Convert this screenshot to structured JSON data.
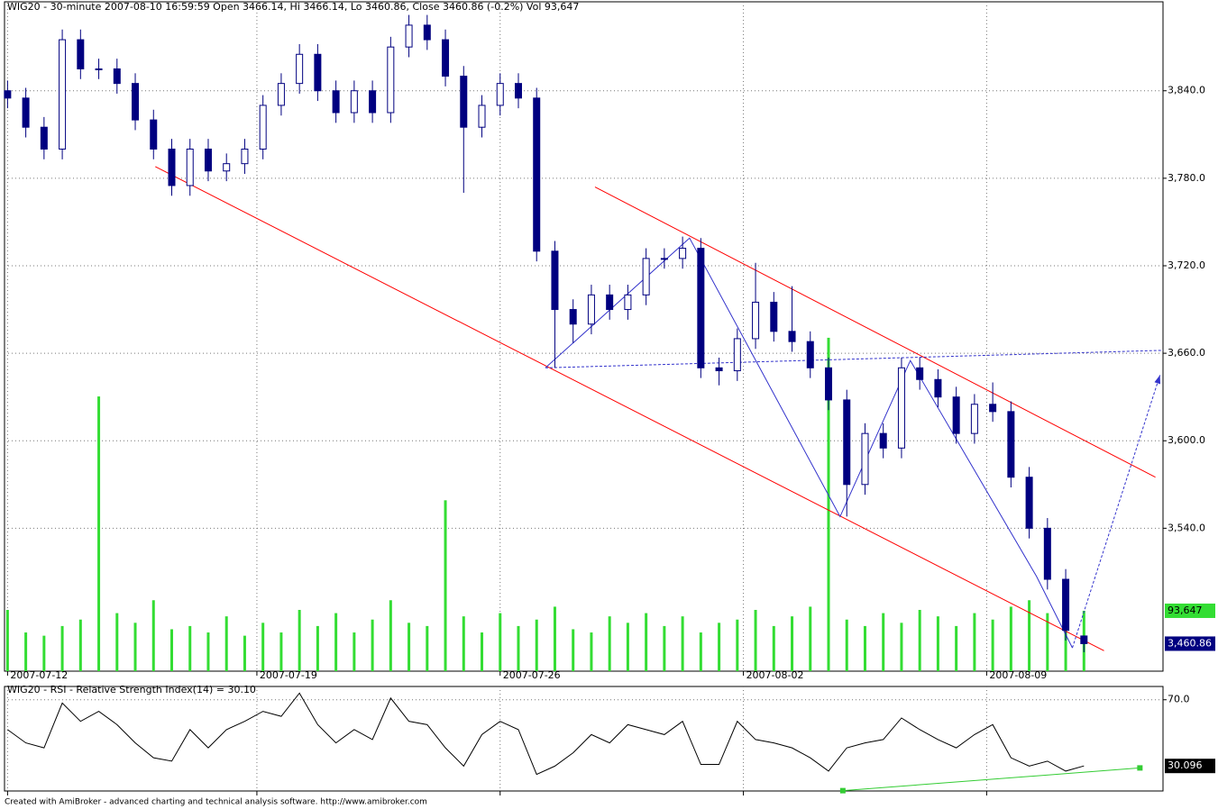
{
  "chart_data": [
    {
      "type": "candlestick",
      "title": "WIG20 - 30-minute 2007-08-10 16:59:59 Open 3466.14, Hi 3466.14, Lo 3460.86, Close 3460.86 (-0.2%) Vol 93,647",
      "x": [
        0,
        6,
        12,
        18,
        24,
        30,
        36,
        42,
        48,
        54,
        60,
        66,
        72,
        78,
        84,
        90,
        96,
        102,
        108,
        114,
        120,
        126,
        132,
        138,
        144,
        150,
        156,
        162,
        168,
        174,
        180,
        186,
        192,
        198,
        204,
        210,
        216,
        222,
        228,
        234,
        240,
        246,
        252,
        258,
        264,
        270,
        276,
        282,
        288,
        294,
        300,
        306,
        312,
        318,
        324,
        330,
        336,
        342,
        348,
        354
      ],
      "open": [
        3840,
        3835,
        3815,
        3800,
        3875,
        3855,
        3855,
        3845,
        3820,
        3800,
        3775,
        3800,
        3785,
        3790,
        3800,
        3830,
        3845,
        3865,
        3840,
        3825,
        3840,
        3825,
        3870,
        3885,
        3875,
        3850,
        3815,
        3830,
        3845,
        3835,
        3730,
        3690,
        3680,
        3700,
        3690,
        3700,
        3725,
        3725,
        3732,
        3650,
        3648,
        3670,
        3695,
        3675,
        3668,
        3650,
        3628,
        3570,
        3605,
        3595,
        3650,
        3642,
        3630,
        3605,
        3625,
        3620,
        3575,
        3540,
        3505,
        3466.14
      ],
      "high": [
        3847,
        3842,
        3822,
        3882,
        3882,
        3862,
        3862,
        3852,
        3827,
        3807,
        3807,
        3807,
        3797,
        3807,
        3837,
        3852,
        3872,
        3872,
        3847,
        3847,
        3847,
        3877,
        3892,
        3892,
        3882,
        3857,
        3837,
        3852,
        3852,
        3842,
        3737,
        3697,
        3707,
        3707,
        3707,
        3732,
        3732,
        3740,
        3739,
        3657,
        3677,
        3722,
        3702,
        3706,
        3675,
        3657,
        3635,
        3612,
        3612,
        3657,
        3657,
        3649,
        3637,
        3632,
        3640,
        3627,
        3582,
        3547,
        3512,
        3466.14
      ],
      "low": [
        3828,
        3808,
        3793,
        3793,
        3848,
        3848,
        3838,
        3813,
        3793,
        3768,
        3768,
        3778,
        3778,
        3783,
        3793,
        3823,
        3838,
        3833,
        3818,
        3818,
        3818,
        3818,
        3863,
        3868,
        3843,
        3770,
        3808,
        3823,
        3828,
        3723,
        3650,
        3667,
        3673,
        3683,
        3683,
        3693,
        3718,
        3718,
        3643,
        3638,
        3641,
        3663,
        3668,
        3661,
        3643,
        3621,
        3548,
        3563,
        3588,
        3588,
        3635,
        3623,
        3598,
        3598,
        3613,
        3568,
        3533,
        3498,
        3463,
        3455
      ],
      "close": [
        3835,
        3815,
        3800,
        3875,
        3855,
        3855,
        3845,
        3820,
        3800,
        3775,
        3800,
        3785,
        3790,
        3800,
        3830,
        3845,
        3865,
        3840,
        3825,
        3840,
        3825,
        3870,
        3885,
        3875,
        3850,
        3815,
        3830,
        3845,
        3835,
        3730,
        3690,
        3680,
        3700,
        3690,
        3700,
        3725,
        3725,
        3732,
        3650,
        3648,
        3670,
        3695,
        3675,
        3668,
        3650,
        3628,
        3570,
        3605,
        3595,
        3650,
        3642,
        3630,
        3605,
        3625,
        3620,
        3575,
        3540,
        3505,
        3470,
        3460.86
      ],
      "color": "#000080",
      "last_value_label": "3,460.86",
      "volume": {
        "values": [
          95000,
          60000,
          55000,
          70000,
          80000,
          426000,
          90000,
          75000,
          110000,
          65000,
          70000,
          60000,
          85000,
          55000,
          75000,
          60000,
          95000,
          70000,
          90000,
          60000,
          80000,
          110000,
          75000,
          70000,
          265000,
          85000,
          60000,
          90000,
          70000,
          80000,
          100000,
          65000,
          60000,
          85000,
          75000,
          90000,
          70000,
          85000,
          60000,
          75000,
          80000,
          95000,
          70000,
          85000,
          100000,
          517000,
          80000,
          70000,
          90000,
          75000,
          95000,
          85000,
          70000,
          90000,
          80000,
          100000,
          110000,
          90000,
          70000,
          93647
        ],
        "color": "#33dd33",
        "lim": [
          0,
          1038000
        ],
        "last_value_label": "93,647"
      },
      "xlim": [
        -1,
        380
      ],
      "xticks": [
        {
          "value": 0,
          "label": "2007-07-12"
        },
        {
          "value": 82,
          "label": "2007-07-19"
        },
        {
          "value": 162,
          "label": "2007-07-26"
        },
        {
          "value": 242,
          "label": "2007-08-02"
        },
        {
          "value": 322,
          "label": "2007-08-09"
        }
      ],
      "ylim": [
        3442,
        3901
      ],
      "yticks": [
        {
          "value": 3540,
          "label": "3,540.0"
        },
        {
          "value": 3600,
          "label": "3,600.0"
        },
        {
          "value": 3660,
          "label": "3,660.0"
        },
        {
          "value": 3720,
          "label": "3,720.0"
        },
        {
          "value": 3780,
          "label": "3,780.0"
        },
        {
          "value": 3840,
          "label": "3,840.0"
        }
      ],
      "grid": true,
      "trendlines": [
        {
          "color": "#ff0000",
          "dashed": false,
          "points": [
            [
              48.6,
              3788
            ],
            [
              360.6,
              3456
            ]
          ]
        },
        {
          "color": "#ff0000",
          "dashed": false,
          "points": [
            [
              193.2,
              3774
            ],
            [
              377.5,
              3575
            ]
          ]
        },
        {
          "color": "#3333cc",
          "dashed": false,
          "points": [
            [
              176.9,
              3650
            ],
            [
              224.3,
              3739
            ],
            [
              273.8,
              3548
            ],
            [
              296.9,
              3655
            ],
            [
              338.4,
              3507
            ],
            [
              350.2,
              3458
            ]
          ]
        },
        {
          "color": "#3333cc",
          "dashed": true,
          "points": [
            [
              176.9,
              3650
            ],
            [
              380,
              3662
            ]
          ]
        },
        {
          "color": "#3333cc",
          "dashed": true,
          "arrow": true,
          "points": [
            [
              350.2,
              3458
            ],
            [
              379,
              3645
            ]
          ]
        }
      ]
    },
    {
      "type": "line",
      "title": "WIG20 - RSI - Relative Strength Index(14) = 30.10",
      "x": [
        0,
        6,
        12,
        18,
        24,
        30,
        36,
        42,
        48,
        54,
        60,
        66,
        72,
        78,
        84,
        90,
        96,
        102,
        108,
        114,
        120,
        126,
        132,
        138,
        144,
        150,
        156,
        162,
        168,
        174,
        180,
        186,
        192,
        198,
        204,
        210,
        216,
        222,
        228,
        234,
        240,
        246,
        252,
        258,
        264,
        270,
        276,
        282,
        288,
        294,
        300,
        306,
        312,
        318,
        324,
        330,
        336,
        342,
        348,
        354
      ],
      "values": [
        52,
        44,
        41,
        68,
        57,
        63,
        55,
        44,
        35,
        33,
        52,
        41,
        52,
        57,
        63,
        60,
        74,
        55,
        44,
        52,
        46,
        71,
        57,
        55,
        41,
        30,
        49,
        57,
        52,
        25,
        30,
        38,
        49,
        44,
        55,
        52,
        49,
        57,
        31,
        31,
        57,
        46,
        44,
        41,
        35,
        27,
        41,
        44,
        46,
        59,
        52,
        46,
        41,
        49,
        55,
        35,
        30,
        33,
        27,
        30.096
      ],
      "color": "#000000",
      "last_value_label": "30.096",
      "xlim": [
        -1,
        380
      ],
      "xticks": [
        0,
        82,
        162,
        242,
        322
      ],
      "ylim": [
        15,
        78
      ],
      "yticks": [
        {
          "value": 70,
          "label": "70.0"
        }
      ],
      "grid": true,
      "trendlines": [
        {
          "color": "#33cc33",
          "dashed": false,
          "markers": true,
          "points": [
            [
              274.7,
              15.2
            ],
            [
              372.4,
              28.9
            ]
          ]
        }
      ]
    }
  ],
  "footer": "Created with AmiBroker - advanced charting and technical analysis software. http://www.amibroker.com"
}
